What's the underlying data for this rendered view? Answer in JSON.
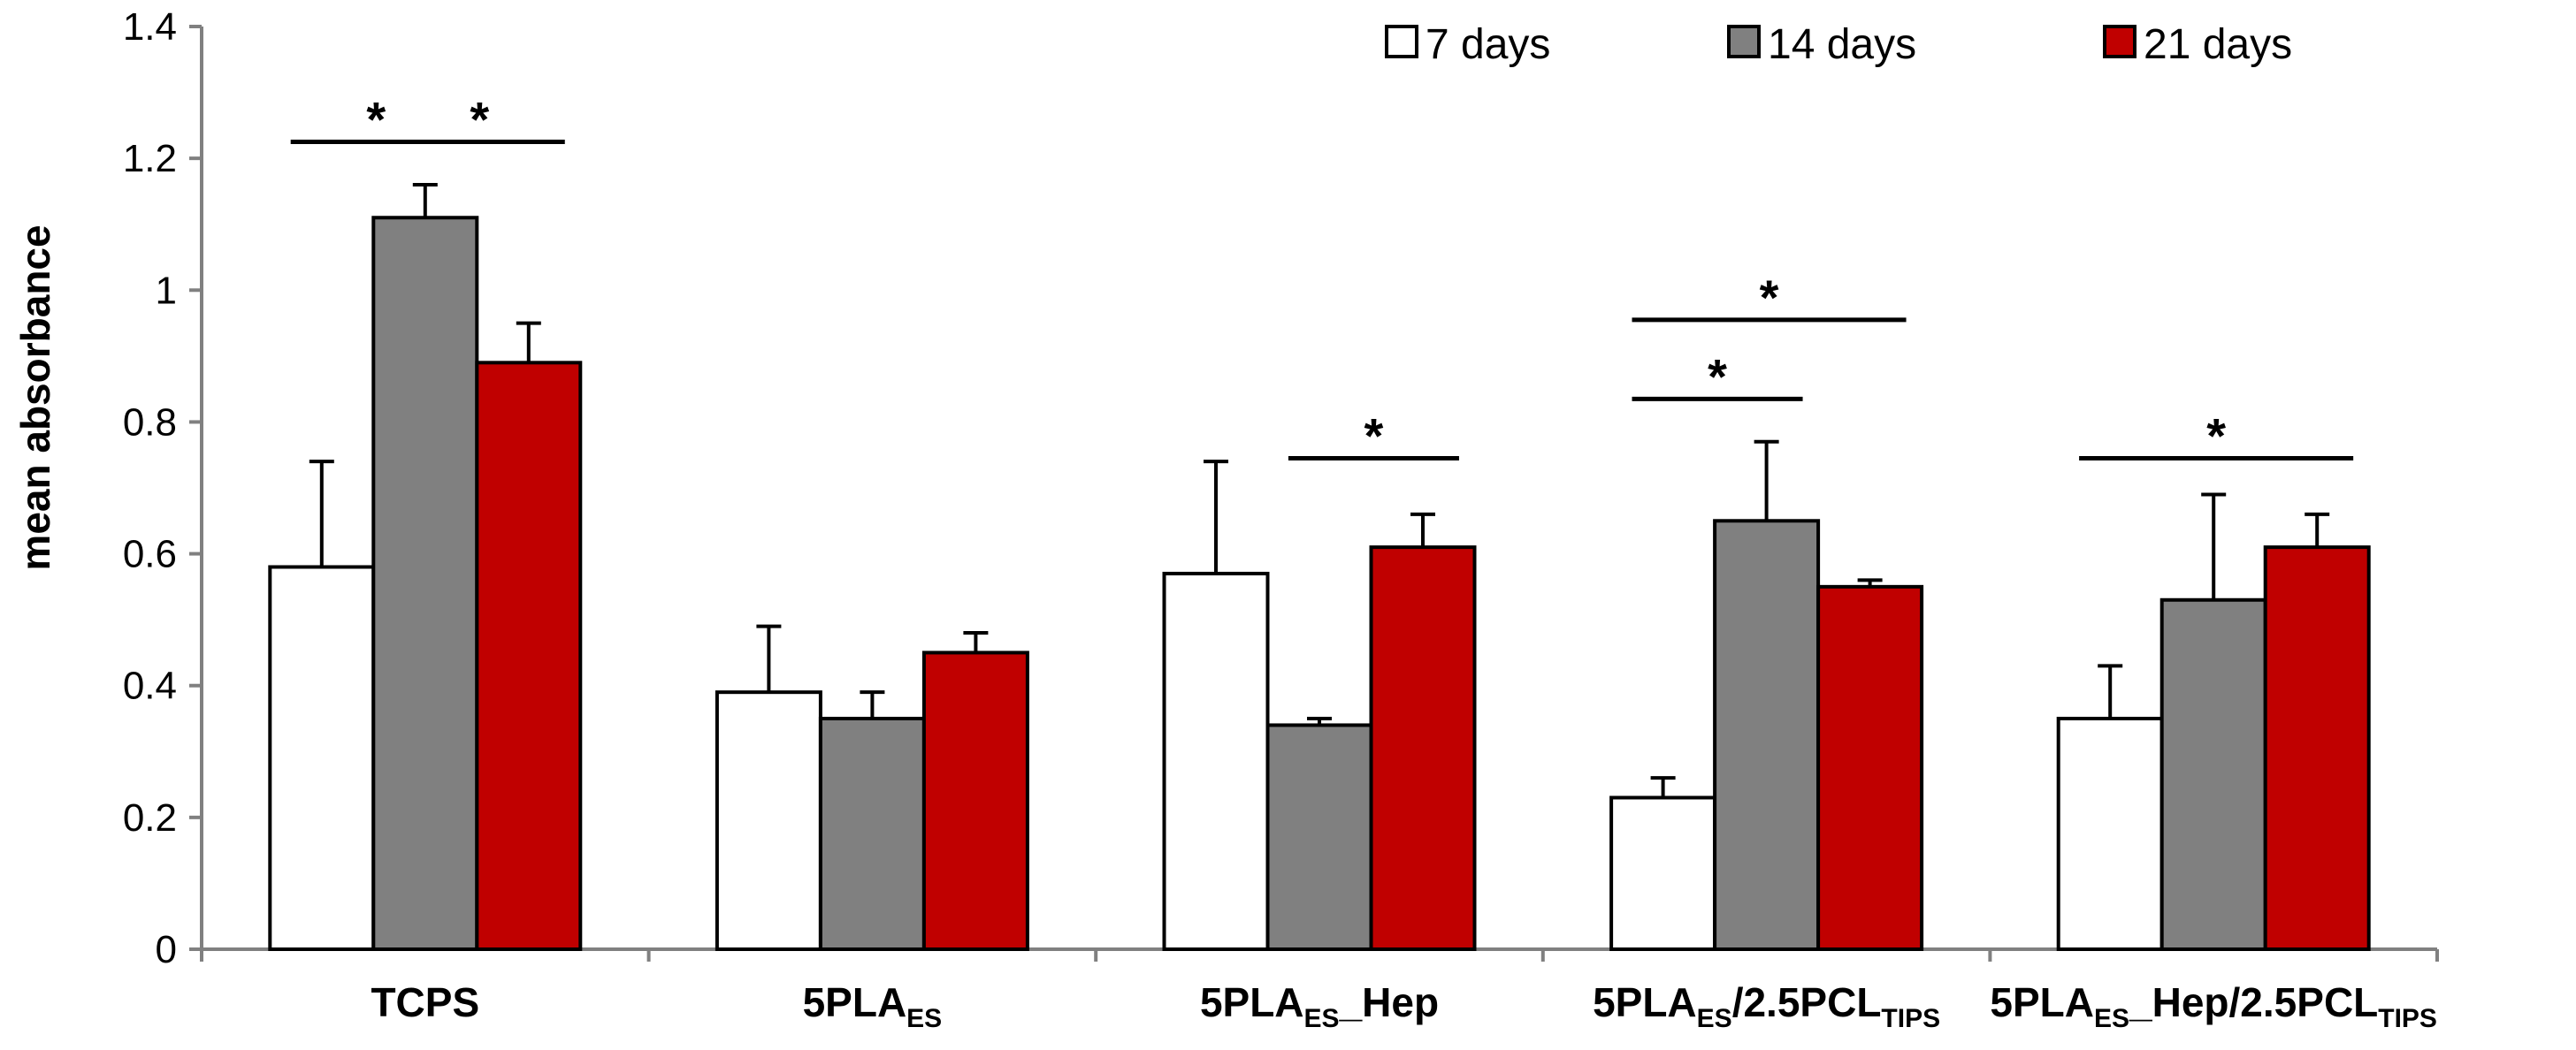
{
  "chart_data": {
    "type": "bar",
    "title": "",
    "xlabel": "",
    "ylabel": "mean absorbance",
    "ylim": [
      0,
      1.4
    ],
    "yticks": [
      {
        "value": 0,
        "label": "0"
      },
      {
        "value": 0.2,
        "label": "0.2"
      },
      {
        "value": 0.4,
        "label": "0.4"
      },
      {
        "value": 0.6,
        "label": "0.6"
      },
      {
        "value": 0.8,
        "label": "0.8"
      },
      {
        "value": 1.0,
        "label": "1"
      },
      {
        "value": 1.2,
        "label": "1.2"
      },
      {
        "value": 1.4,
        "label": "1.4"
      }
    ],
    "grid": false,
    "legend_position": "top-right",
    "categories": [
      {
        "label": "TCPS",
        "main": "TCPS",
        "parts": [
          {
            "text": "TCPS",
            "sub": false
          }
        ]
      },
      {
        "label": "5PLAES",
        "main": "5PLA",
        "parts": [
          {
            "text": "5PLA",
            "sub": false
          },
          {
            "text": "ES",
            "sub": true
          }
        ]
      },
      {
        "label": "5PLAES_Hep",
        "main": "5PLA",
        "parts": [
          {
            "text": "5PLA",
            "sub": false
          },
          {
            "text": "ES",
            "sub": true
          },
          {
            "text": "_Hep",
            "sub": false
          }
        ]
      },
      {
        "label": "5PLAES/2.5PCLTIPS",
        "main": "5PLA",
        "parts": [
          {
            "text": "5PLA",
            "sub": false
          },
          {
            "text": "ES",
            "sub": true
          },
          {
            "text": "/2.5PCL",
            "sub": false
          },
          {
            "text": "TIPS",
            "sub": true
          }
        ]
      },
      {
        "label": "5PLAES_Hep/2.5PCLTIPS",
        "main": "5PLA",
        "parts": [
          {
            "text": "5PLA",
            "sub": false
          },
          {
            "text": "ES",
            "sub": true
          },
          {
            "text": "_Hep/2.5PCL",
            "sub": false
          },
          {
            "text": "TIPS",
            "sub": true
          }
        ]
      }
    ],
    "series": [
      {
        "name": "7 days",
        "color": "#ffffff",
        "values": [
          0.58,
          0.39,
          0.57,
          0.23,
          0.35
        ],
        "errors": [
          0.16,
          0.1,
          0.17,
          0.03,
          0.08
        ]
      },
      {
        "name": "14 days",
        "color": "#808080",
        "values": [
          1.11,
          0.35,
          0.34,
          0.65,
          0.53
        ],
        "errors": [
          0.05,
          0.04,
          0.01,
          0.12,
          0.16
        ]
      },
      {
        "name": "21 days",
        "color": "#c00000",
        "values": [
          0.89,
          0.45,
          0.61,
          0.55,
          0.61
        ],
        "errors": [
          0.06,
          0.03,
          0.05,
          0.01,
          0.05
        ]
      }
    ],
    "significance": [
      {
        "category": 0,
        "from_series": 0,
        "to_series": 1,
        "y": 1.225,
        "label": "*"
      },
      {
        "category": 0,
        "from_series": 1,
        "to_series": 2,
        "y": 1.225,
        "label": "*"
      },
      {
        "category": 2,
        "from_series": 1,
        "to_series": 2,
        "y": 0.745,
        "label": "*"
      },
      {
        "category": 3,
        "from_series": 0,
        "to_series": 1,
        "y": 0.835,
        "label": "*"
      },
      {
        "category": 3,
        "from_series": 0,
        "to_series": 2,
        "y": 0.955,
        "label": "*"
      },
      {
        "category": 4,
        "from_series": 0,
        "to_series": 2,
        "y": 0.745,
        "label": "*"
      }
    ]
  }
}
